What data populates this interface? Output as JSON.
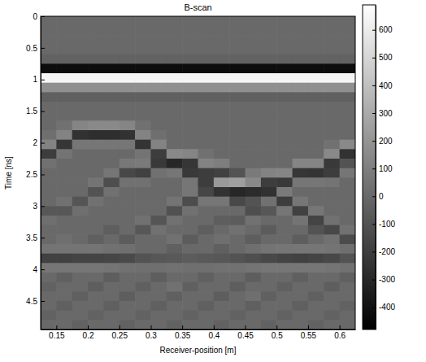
{
  "chart_data": {
    "type": "heatmap",
    "title": "B-scan",
    "x_label": "Receiver-position [m]",
    "y_label": "Time [ns]",
    "color": "gray",
    "xlim": [
      0.125,
      0.625
    ],
    "ylim": [
      0,
      4.95
    ],
    "xticks": [
      0.15,
      0.2,
      0.25,
      0.3,
      0.35,
      0.4,
      0.45,
      0.5,
      0.55,
      0.6
    ],
    "yticks": [
      0,
      0.5,
      1,
      1.5,
      2,
      2.5,
      3,
      3.5,
      4,
      4.5
    ],
    "colorbar": {
      "range": [
        -480,
        690
      ],
      "ticks": [
        600,
        500,
        400,
        300,
        200,
        100,
        0,
        -100,
        -200,
        -300,
        -400
      ]
    },
    "x": [
      0.1375,
      0.1625,
      0.1875,
      0.2125,
      0.2375,
      0.2625,
      0.2875,
      0.3125,
      0.3375,
      0.3625,
      0.3875,
      0.4125,
      0.4375,
      0.4625,
      0.4875,
      0.5125,
      0.5375,
      0.5625,
      0.5875,
      0.6125
    ],
    "y": [
      0.075,
      0.225,
      0.375,
      0.525,
      0.675,
      0.825,
      0.975,
      1.125,
      1.275,
      1.425,
      1.575,
      1.725,
      1.875,
      2.025,
      2.175,
      2.325,
      2.475,
      2.625,
      2.775,
      2.925,
      3.075,
      3.225,
      3.375,
      3.525,
      3.675,
      3.825,
      3.975,
      4.125,
      4.275,
      4.425,
      4.575,
      4.725,
      4.875
    ],
    "values": [
      [
        0,
        0,
        0,
        0,
        0,
        0,
        0,
        0,
        0,
        0,
        0,
        0,
        0,
        0,
        0,
        0,
        0,
        0,
        0,
        0
      ],
      [
        0,
        0,
        0,
        0,
        0,
        0,
        0,
        0,
        0,
        0,
        0,
        0,
        0,
        0,
        0,
        0,
        0,
        0,
        0,
        0
      ],
      [
        0,
        0,
        0,
        0,
        0,
        0,
        0,
        0,
        0,
        0,
        0,
        0,
        0,
        0,
        0,
        0,
        0,
        0,
        0,
        0
      ],
      [
        0,
        0,
        0,
        0,
        0,
        0,
        0,
        0,
        0,
        0,
        0,
        0,
        0,
        0,
        0,
        0,
        0,
        0,
        0,
        0
      ],
      [
        -30,
        -30,
        -30,
        -30,
        -30,
        -30,
        -30,
        -30,
        -30,
        -30,
        -30,
        -30,
        -30,
        -30,
        -30,
        -30,
        -30,
        -30,
        -30,
        -30
      ],
      [
        -420,
        -420,
        -420,
        -420,
        -420,
        -420,
        -420,
        -420,
        -420,
        -420,
        -420,
        -420,
        -420,
        -420,
        -420,
        -420,
        -420,
        -420,
        -420,
        -420
      ],
      [
        650,
        650,
        650,
        650,
        650,
        650,
        650,
        650,
        650,
        650,
        650,
        650,
        650,
        650,
        650,
        650,
        650,
        650,
        650,
        650
      ],
      [
        180,
        180,
        180,
        180,
        180,
        180,
        180,
        180,
        180,
        180,
        180,
        180,
        180,
        180,
        180,
        180,
        180,
        180,
        180,
        180
      ],
      [
        -40,
        -40,
        -40,
        -40,
        -40,
        -40,
        -40,
        -40,
        -40,
        -40,
        -40,
        -40,
        -40,
        -40,
        -40,
        -40,
        -40,
        -40,
        -40,
        -40
      ],
      [
        0,
        0,
        0,
        0,
        0,
        0,
        0,
        0,
        0,
        0,
        0,
        0,
        0,
        0,
        0,
        0,
        0,
        0,
        0,
        0
      ],
      [
        0,
        0,
        0,
        0,
        0,
        0,
        0,
        0,
        0,
        0,
        0,
        0,
        0,
        0,
        0,
        0,
        0,
        0,
        0,
        0
      ],
      [
        0,
        40,
        130,
        150,
        150,
        130,
        40,
        0,
        0,
        0,
        0,
        0,
        0,
        0,
        0,
        0,
        0,
        0,
        0,
        0
      ],
      [
        30,
        120,
        -250,
        -270,
        -270,
        -250,
        120,
        30,
        0,
        0,
        0,
        0,
        0,
        0,
        0,
        0,
        0,
        0,
        0,
        0
      ],
      [
        120,
        -230,
        60,
        60,
        60,
        60,
        -240,
        120,
        0,
        0,
        0,
        0,
        0,
        0,
        0,
        0,
        0,
        0,
        40,
        150
      ],
      [
        -200,
        50,
        0,
        0,
        0,
        0,
        50,
        -200,
        150,
        130,
        40,
        0,
        0,
        0,
        0,
        0,
        0,
        0,
        150,
        -250
      ],
      [
        40,
        0,
        0,
        0,
        0,
        70,
        80,
        -220,
        -300,
        -230,
        120,
        100,
        0,
        0,
        0,
        0,
        130,
        130,
        -220,
        -100
      ],
      [
        0,
        0,
        0,
        0,
        60,
        -150,
        -180,
        40,
        60,
        -220,
        -200,
        -180,
        -100,
        80,
        120,
        130,
        -230,
        -240,
        -200,
        60
      ],
      [
        0,
        0,
        0,
        50,
        -120,
        40,
        40,
        0,
        0,
        60,
        -200,
        220,
        250,
        150,
        -200,
        -220,
        60,
        60,
        50,
        0
      ],
      [
        0,
        0,
        0,
        -100,
        40,
        0,
        0,
        0,
        0,
        60,
        -160,
        -250,
        -300,
        -280,
        -250,
        80,
        0,
        0,
        0,
        0
      ],
      [
        0,
        40,
        -90,
        40,
        0,
        0,
        0,
        0,
        50,
        -130,
        60,
        60,
        -150,
        -100,
        40,
        -200,
        60,
        0,
        0,
        0
      ],
      [
        -80,
        -80,
        30,
        0,
        0,
        0,
        0,
        0,
        -110,
        40,
        0,
        0,
        0,
        -120,
        -80,
        60,
        -180,
        60,
        0,
        0
      ],
      [
        30,
        0,
        0,
        0,
        0,
        0,
        40,
        -90,
        40,
        0,
        0,
        -50,
        -60,
        40,
        0,
        0,
        50,
        -170,
        40,
        0
      ],
      [
        0,
        0,
        0,
        0,
        -50,
        0,
        -80,
        40,
        0,
        0,
        -50,
        0,
        40,
        0,
        -60,
        0,
        0,
        -100,
        -150,
        40
      ],
      [
        0,
        30,
        0,
        -40,
        0,
        -60,
        0,
        0,
        40,
        -60,
        0,
        30,
        0,
        -50,
        0,
        0,
        -50,
        0,
        40,
        -130
      ],
      [
        50,
        50,
        50,
        50,
        40,
        30,
        0,
        0,
        -40,
        0,
        0,
        -40,
        0,
        30,
        50,
        60,
        60,
        60,
        50,
        30
      ],
      [
        -180,
        -180,
        -170,
        -170,
        -160,
        -140,
        -100,
        -80,
        -70,
        -60,
        -70,
        -80,
        -100,
        -120,
        -150,
        -170,
        -180,
        -170,
        -150,
        -100
      ],
      [
        60,
        60,
        60,
        60,
        50,
        40,
        30,
        30,
        40,
        30,
        30,
        40,
        40,
        50,
        60,
        60,
        60,
        60,
        50,
        40
      ],
      [
        0,
        -40,
        0,
        0,
        -50,
        0,
        0,
        -50,
        0,
        0,
        -40,
        0,
        0,
        -50,
        0,
        0,
        -40,
        0,
        0,
        -40
      ],
      [
        -30,
        0,
        0,
        -50,
        0,
        0,
        -40,
        0,
        40,
        -40,
        0,
        0,
        -50,
        0,
        0,
        -40,
        0,
        0,
        -50,
        0
      ],
      [
        0,
        0,
        -40,
        0,
        0,
        -50,
        0,
        0,
        -40,
        0,
        0,
        -50,
        0,
        30,
        -40,
        0,
        0,
        -40,
        0,
        0
      ],
      [
        0,
        -40,
        0,
        0,
        -40,
        0,
        0,
        -40,
        0,
        0,
        -40,
        0,
        0,
        -40,
        0,
        0,
        -40,
        0,
        0,
        -30
      ],
      [
        -30,
        0,
        0,
        -30,
        0,
        0,
        -30,
        0,
        0,
        -30,
        0,
        0,
        -30,
        0,
        0,
        -30,
        0,
        0,
        -30,
        0
      ],
      [
        0,
        0,
        -30,
        0,
        0,
        -30,
        0,
        0,
        -30,
        0,
        0,
        -30,
        0,
        0,
        -30,
        0,
        0,
        -30,
        0,
        0
      ]
    ]
  }
}
